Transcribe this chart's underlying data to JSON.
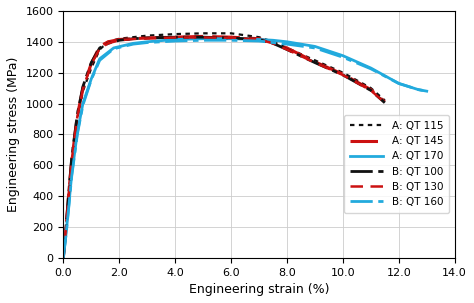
{
  "title": "",
  "xlabel": "Engineering strain (%)",
  "ylabel": "Engineering stress (MPa)",
  "xlim": [
    0,
    14.0
  ],
  "ylim": [
    0,
    1600
  ],
  "xticks": [
    0,
    2.0,
    4.0,
    6.0,
    8.0,
    10.0,
    12.0,
    14.0
  ],
  "yticks": [
    0,
    200,
    400,
    600,
    800,
    1000,
    1200,
    1400,
    1600
  ],
  "curves": [
    {
      "key": "A_QT115",
      "label": "A: QT 115",
      "color": "#111111",
      "linestyle_key": "dotted",
      "linewidth": 1.6,
      "x": [
        0,
        0.1,
        0.2,
        0.3,
        0.5,
        0.7,
        1.0,
        1.3,
        1.6,
        2.0,
        2.5,
        3.0,
        4.0,
        5.0,
        6.0,
        7.0,
        7.5,
        8.0,
        9.0,
        10.0,
        11.0,
        11.5
      ],
      "y": [
        0,
        200,
        420,
        620,
        900,
        1080,
        1230,
        1350,
        1400,
        1420,
        1430,
        1440,
        1450,
        1455,
        1455,
        1430,
        1400,
        1360,
        1280,
        1200,
        1100,
        1020
      ]
    },
    {
      "key": "A_QT145",
      "label": "A: QT 145",
      "color": "#cc1111",
      "linestyle_key": "long_dash",
      "linewidth": 2.2,
      "x": [
        0,
        0.1,
        0.2,
        0.3,
        0.5,
        0.7,
        1.0,
        1.3,
        1.6,
        2.0,
        2.5,
        3.0,
        4.0,
        5.0,
        6.0,
        7.0,
        7.5,
        8.0,
        9.0,
        10.0,
        11.0,
        11.5
      ],
      "y": [
        0,
        200,
        430,
        630,
        920,
        1100,
        1260,
        1370,
        1400,
        1415,
        1420,
        1425,
        1430,
        1435,
        1430,
        1420,
        1395,
        1360,
        1270,
        1190,
        1090,
        1010
      ]
    },
    {
      "key": "A_QT170",
      "label": "A: QT 170",
      "color": "#22aadd",
      "linestyle_key": "solid",
      "linewidth": 2.0,
      "x": [
        0,
        0.1,
        0.2,
        0.3,
        0.5,
        0.7,
        1.0,
        1.3,
        1.8,
        2.5,
        3.0,
        4.0,
        5.0,
        6.0,
        7.0,
        7.5,
        8.0,
        9.0,
        10.0,
        11.0,
        12.0,
        12.7,
        13.0
      ],
      "y": [
        0,
        160,
        350,
        540,
        810,
        1000,
        1160,
        1290,
        1360,
        1390,
        1400,
        1415,
        1420,
        1420,
        1415,
        1410,
        1400,
        1370,
        1310,
        1230,
        1130,
        1090,
        1080
      ]
    },
    {
      "key": "B_QT100",
      "label": "B: QT 100",
      "color": "#111111",
      "linestyle_key": "dash_dot",
      "linewidth": 2.0,
      "x": [
        0,
        0.1,
        0.2,
        0.3,
        0.5,
        0.7,
        1.0,
        1.3,
        1.6,
        2.0,
        2.5,
        3.0,
        4.0,
        5.0,
        6.0,
        7.0,
        7.5,
        8.0,
        9.0,
        10.0,
        11.0,
        11.5
      ],
      "y": [
        0,
        210,
        440,
        650,
        930,
        1110,
        1265,
        1360,
        1390,
        1410,
        1420,
        1425,
        1430,
        1430,
        1425,
        1415,
        1390,
        1350,
        1265,
        1185,
        1085,
        1005
      ]
    },
    {
      "key": "B_QT130",
      "label": "B: QT 130",
      "color": "#cc1111",
      "linestyle_key": "medium_dash",
      "linewidth": 1.8,
      "x": [
        0,
        0.1,
        0.2,
        0.3,
        0.5,
        0.7,
        1.0,
        1.3,
        1.6,
        2.0,
        2.5,
        3.0,
        4.0,
        5.0,
        6.0,
        7.0,
        7.5,
        8.0,
        9.0,
        10.0,
        11.0,
        11.5
      ],
      "y": [
        0,
        205,
        425,
        635,
        915,
        1095,
        1255,
        1355,
        1390,
        1410,
        1418,
        1422,
        1428,
        1428,
        1425,
        1415,
        1390,
        1350,
        1265,
        1185,
        1085,
        1005
      ]
    },
    {
      "key": "B_QT160",
      "label": "B: QT 160",
      "color": "#22aadd",
      "linestyle_key": "dash_dot",
      "linewidth": 2.0,
      "x": [
        0,
        0.1,
        0.2,
        0.3,
        0.5,
        0.7,
        1.0,
        1.3,
        1.8,
        2.5,
        3.0,
        4.0,
        5.0,
        6.0,
        7.0,
        7.5,
        8.0,
        9.0,
        10.0,
        11.0,
        12.0,
        12.7,
        13.0
      ],
      "y": [
        0,
        155,
        340,
        530,
        800,
        990,
        1155,
        1280,
        1355,
        1385,
        1395,
        1405,
        1410,
        1410,
        1405,
        1395,
        1385,
        1360,
        1300,
        1225,
        1130,
        1090,
        1080
      ]
    }
  ],
  "background_color": "#ffffff",
  "grid_color": "#cccccc"
}
